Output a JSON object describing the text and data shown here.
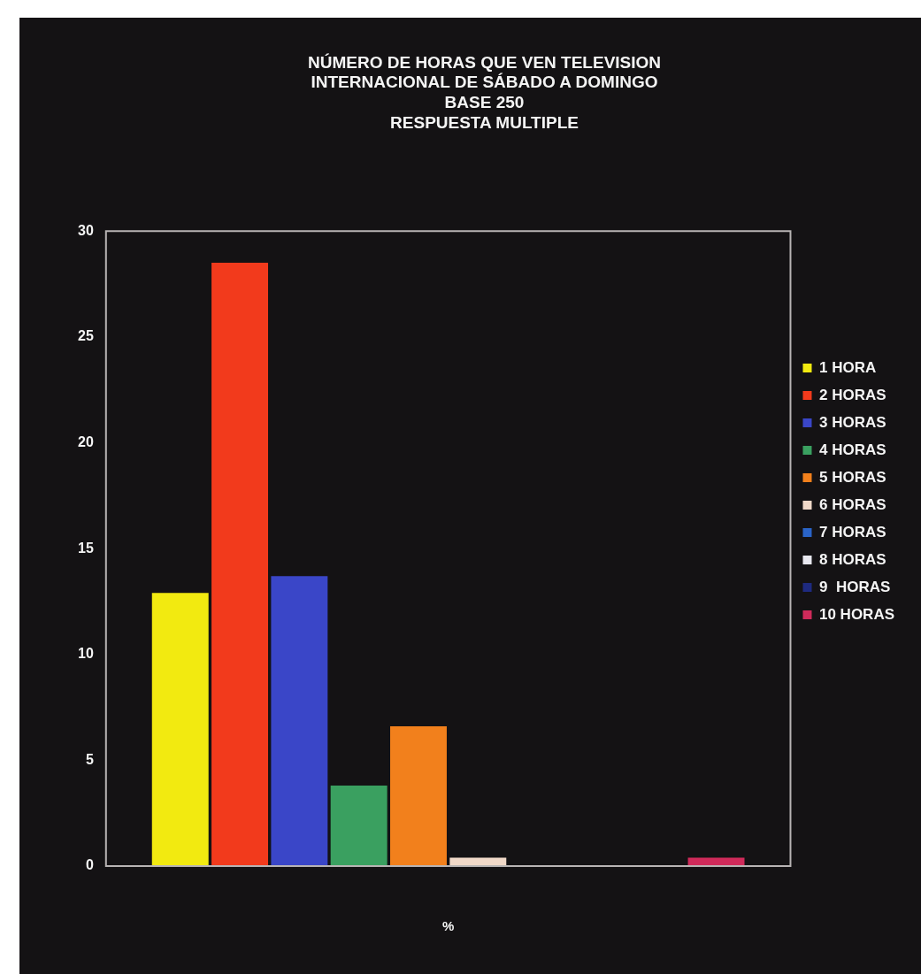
{
  "chart_data": {
    "type": "bar",
    "title": "NÚMERO DE HORAS QUE VEN TELEVISION\nINTERNACIONAL DE SÁBADO A DOMINGO",
    "subtitle": "BASE 250\nRESPUESTA MULTIPLE",
    "categories": [
      null
    ],
    "xlabel": "%",
    "series": [
      {
        "name": "1 HORA",
        "color": "#f2ea10",
        "values": [
          12.9
        ]
      },
      {
        "name": "2 HORAS",
        "color": "#f23a1c",
        "values": [
          28.5
        ]
      },
      {
        "name": "3 HORAS",
        "color": "#3a46c8",
        "values": [
          13.7
        ]
      },
      {
        "name": "4 HORAS",
        "color": "#3aa060",
        "values": [
          3.8
        ]
      },
      {
        "name": "5 HORAS",
        "color": "#f2801c",
        "values": [
          6.6
        ]
      },
      {
        "name": "6 HORAS",
        "color": "#f0d8c8",
        "values": [
          0.4
        ]
      },
      {
        "name": "7 HORAS",
        "color": "#2a64c8",
        "values": [
          0
        ]
      },
      {
        "name": "8 HORAS",
        "color": "#e8e8f0",
        "values": [
          0
        ]
      },
      {
        "name": "9  HORAS",
        "color": "#1e2a80",
        "values": [
          0
        ]
      },
      {
        "name": "10 HORAS",
        "color": "#d02a5a",
        "values": [
          0.4
        ]
      }
    ],
    "ylim": [
      0,
      30
    ],
    "yticks": [
      0,
      5,
      10,
      15,
      20,
      25,
      30
    ],
    "grid": false,
    "legend": "right"
  }
}
